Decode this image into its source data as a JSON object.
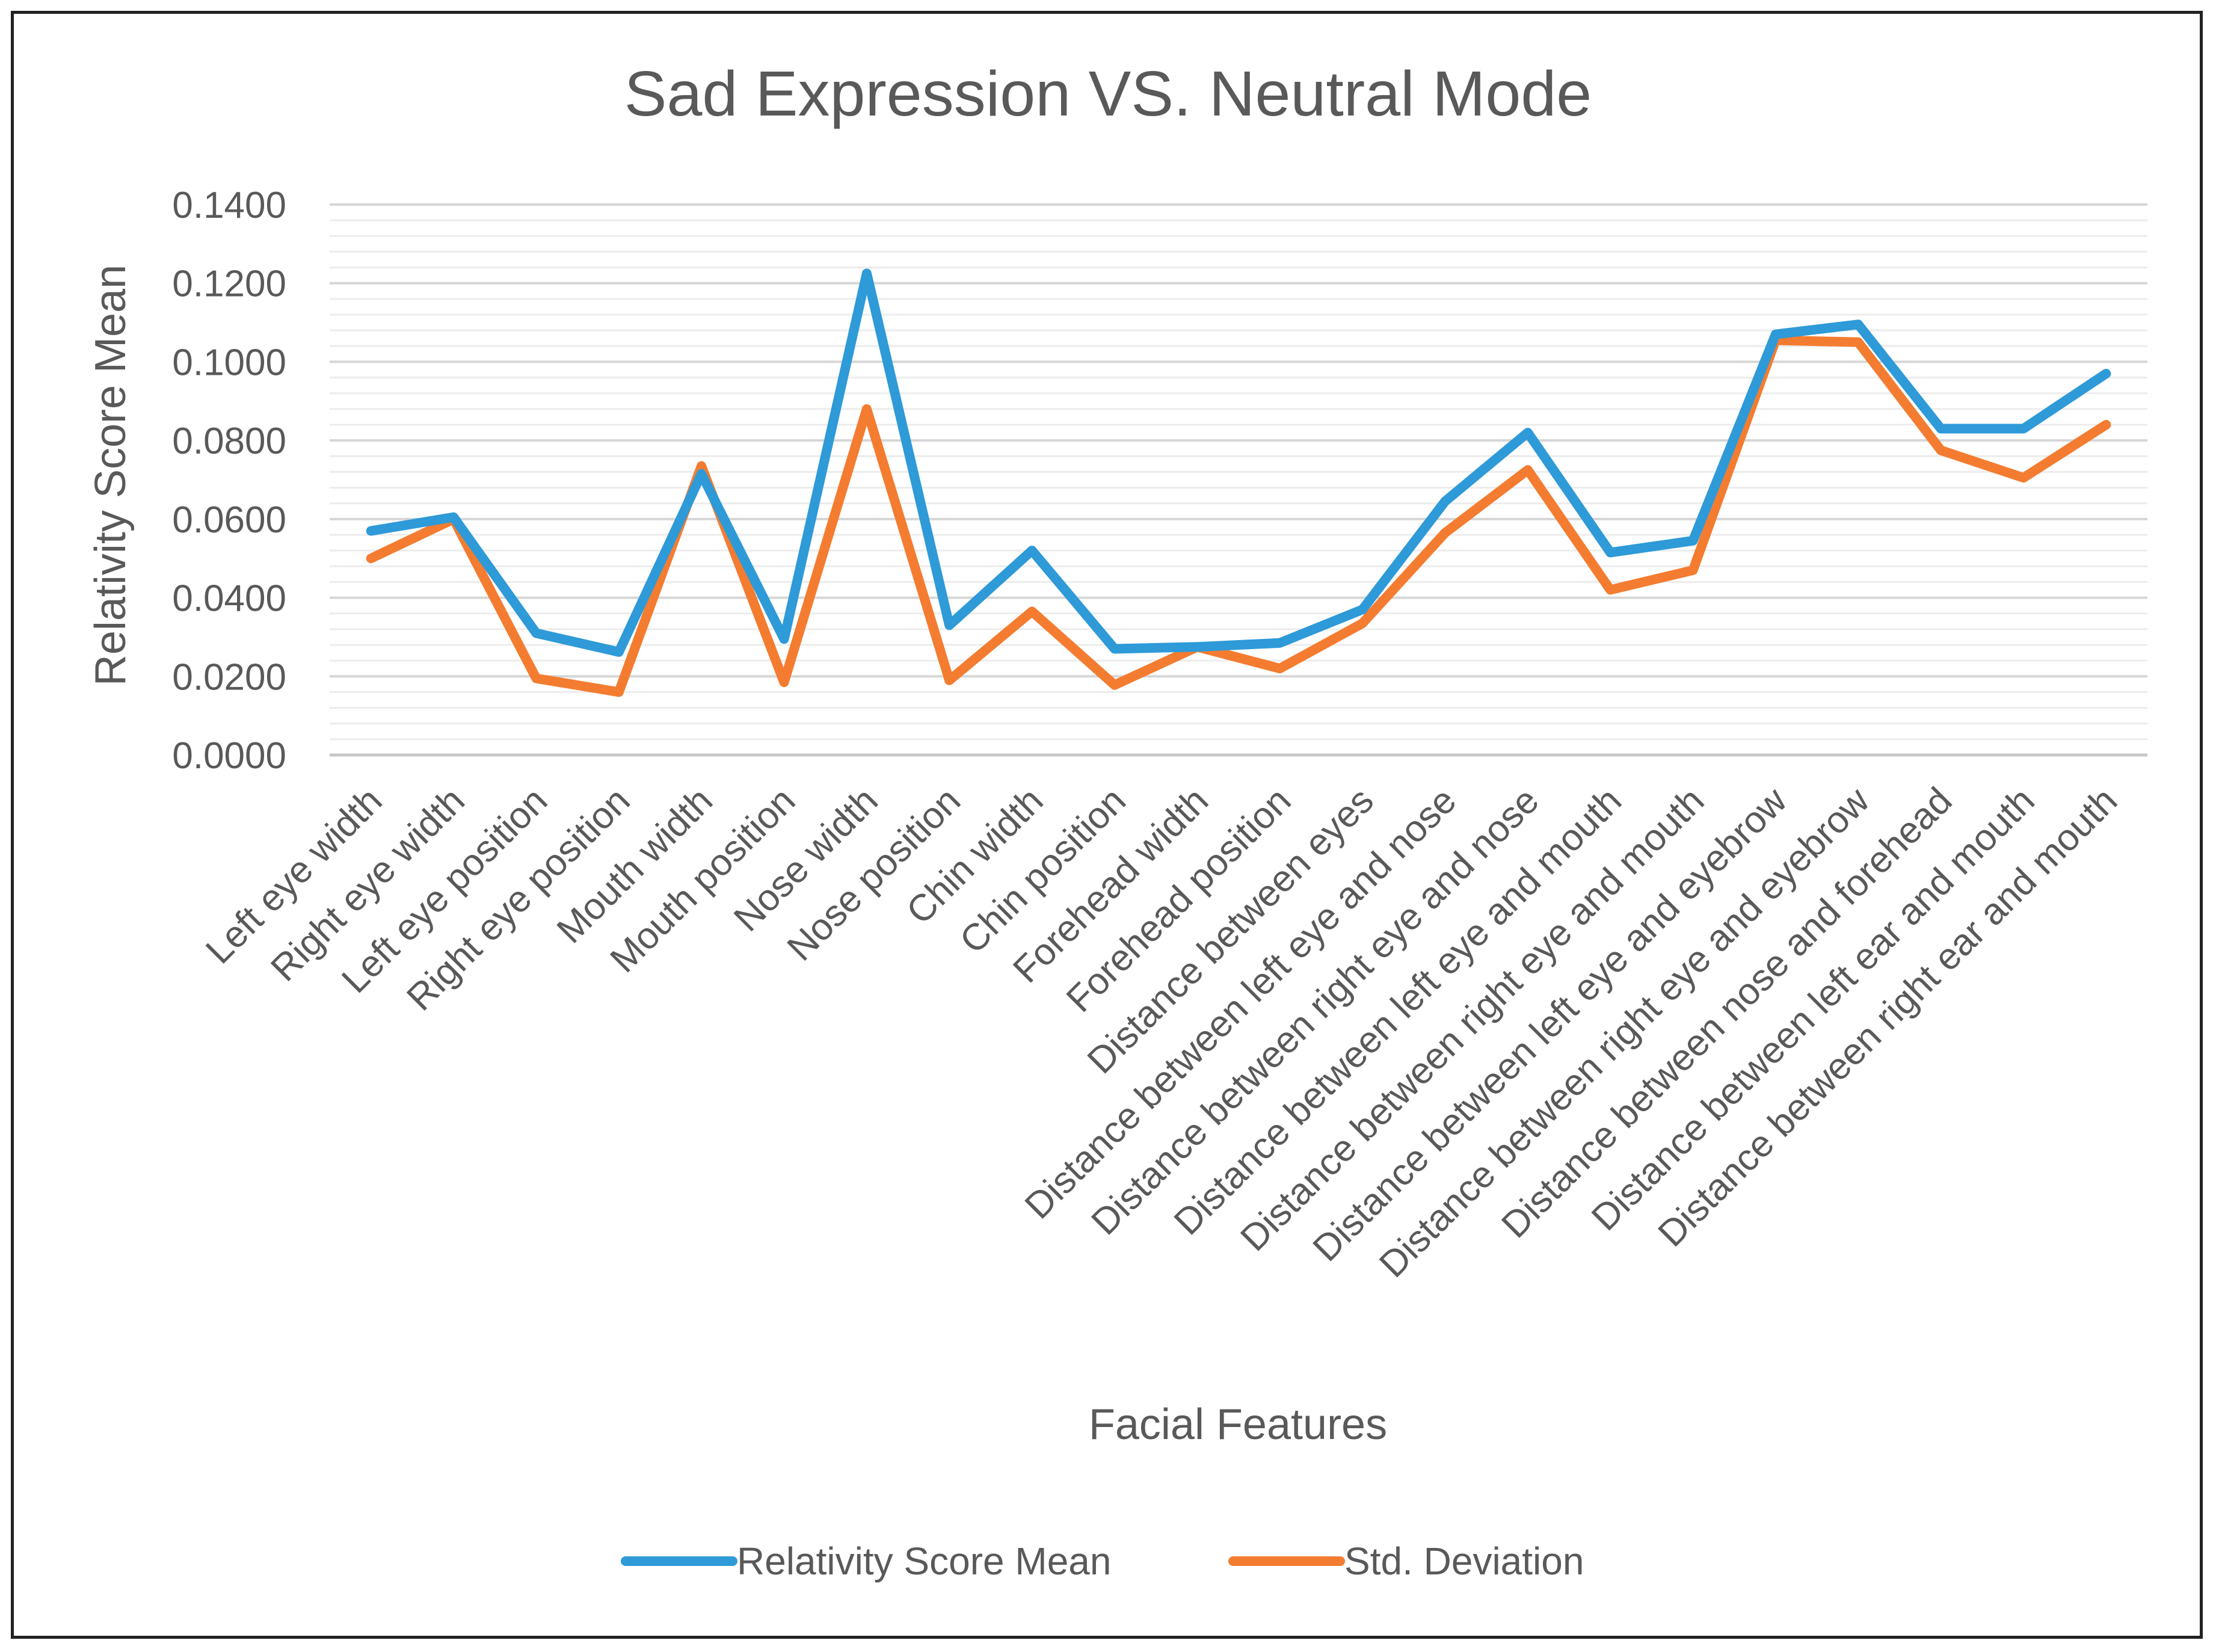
{
  "chart_data": {
    "type": "line",
    "title": "Sad Expression VS. Neutral Mode",
    "xlabel": "Facial Features",
    "ylabel": "Relativity Score Mean",
    "ylim": [
      0,
      0.14
    ],
    "yticks": [
      "0.0000",
      "0.0200",
      "0.0400",
      "0.0600",
      "0.0800",
      "0.1000",
      "0.1200",
      "0.1400"
    ],
    "ytick_values": [
      0,
      0.02,
      0.04,
      0.06,
      0.08,
      0.1,
      0.12,
      0.14
    ],
    "grid": true,
    "legend_position": "bottom",
    "categories": [
      "Left eye width",
      "Right eye width",
      "Left eye position",
      "Right eye position",
      "Mouth width",
      "Mouth position",
      "Nose width",
      "Nose position",
      "Chin width",
      "Chin position",
      "Forehead width",
      "Forehead position",
      "Distance between eyes",
      "Distance between left eye and nose",
      "Distance between right eye and nose",
      "Distance between left eye and mouth",
      "Distance between right eye and mouth",
      "Distance between left eye and eyebrow",
      "Distance between right eye and eyebrow",
      "Distance between nose and forehead",
      "Distance between left ear and mouth",
      "Distance between right ear and mouth"
    ],
    "series": [
      {
        "name": "Relativity Score Mean",
        "color": "#2E9AD8",
        "values": [
          0.057,
          0.0605,
          0.031,
          0.0262,
          0.0715,
          0.0295,
          0.1225,
          0.033,
          0.052,
          0.027,
          0.0275,
          0.0285,
          0.037,
          0.0645,
          0.082,
          0.0515,
          0.0545,
          0.107,
          0.1095,
          0.083,
          0.083,
          0.097
        ]
      },
      {
        "name": "Std. Deviation",
        "color": "#F47C30",
        "values": [
          0.05,
          0.06,
          0.0195,
          0.016,
          0.0735,
          0.0185,
          0.088,
          0.019,
          0.0365,
          0.0178,
          0.0275,
          0.022,
          0.0335,
          0.0565,
          0.0725,
          0.042,
          0.047,
          0.1055,
          0.105,
          0.0775,
          0.0705,
          0.084
        ]
      }
    ]
  }
}
